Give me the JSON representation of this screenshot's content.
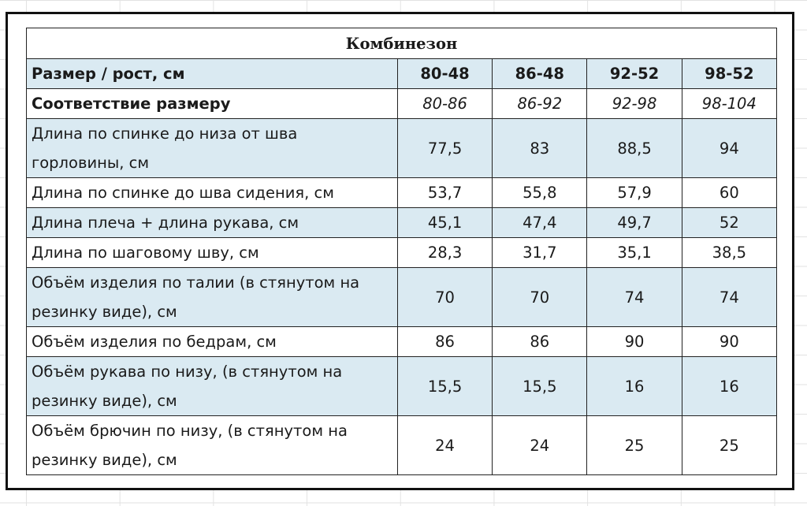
{
  "table": {
    "title": "Комбинезон",
    "header": {
      "label": "Размер / рост, см",
      "sizes": [
        "80-48",
        "86-48",
        "92-52",
        "98-52"
      ]
    },
    "correspondence": {
      "label": "Соответствие размеру",
      "values": [
        "80-86",
        "86-92",
        "92-98",
        "98-104"
      ]
    },
    "rows": [
      {
        "label": "Длина по спинке до низа от шва горловины, см",
        "values": [
          "77,5",
          "83",
          "88,5",
          "94"
        ]
      },
      {
        "label": "Длина по спинке до шва сидения, см",
        "values": [
          "53,7",
          "55,8",
          "57,9",
          "60"
        ]
      },
      {
        "label": "Длина плеча + длина рукава, см",
        "values": [
          "45,1",
          "47,4",
          "49,7",
          "52"
        ]
      },
      {
        "label": "Длина по шаговому шву, см",
        "values": [
          "28,3",
          "31,7",
          "35,1",
          "38,5"
        ]
      },
      {
        "label": "Объём изделия по талии (в стянутом на резинку виде), см",
        "values": [
          "70",
          "70",
          "74",
          "74"
        ]
      },
      {
        "label": "Объём изделия по бедрам, см",
        "values": [
          "86",
          "86",
          "90",
          "90"
        ]
      },
      {
        "label": "Объём рукава по низу, (в стянутом на резинку виде), см",
        "values": [
          "15,5",
          "15,5",
          "16",
          "16"
        ]
      },
      {
        "label": "Объём брючин по низу, (в стянутом на резинку виде), см",
        "values": [
          "24",
          "24",
          "25",
          "25"
        ]
      }
    ]
  },
  "colors": {
    "row_fill_blue": "#daeaf2",
    "row_fill_white": "#ffffff",
    "border": "#222222"
  }
}
